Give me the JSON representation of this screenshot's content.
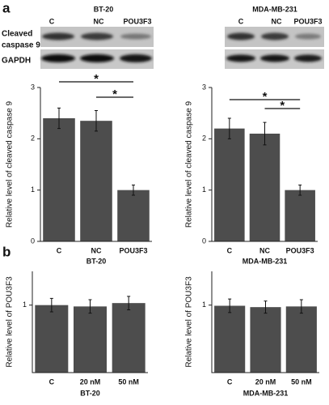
{
  "panel_labels": [
    "a",
    "b"
  ],
  "blots": [
    {
      "title": "BT-20",
      "lanes": [
        "C",
        "NC",
        "POU3F3"
      ],
      "rows": [
        [
          "Cleaved",
          "caspase 9"
        ],
        [
          "GAPDH"
        ]
      ]
    },
    {
      "title": "MDA-MB-231",
      "lanes": [
        "C",
        "NC",
        "POU3F3"
      ]
    }
  ],
  "chart_data": [
    {
      "type": "bar",
      "y_label": "Relative level of cleaved caspase 9",
      "x_label": "BT-20",
      "categories": [
        "C",
        "NC",
        "POU3F3"
      ],
      "values": [
        2.4,
        2.35,
        1.0
      ],
      "errors": [
        0.2,
        0.2,
        0.1
      ],
      "color": "#4d4d4d",
      "ylim": [
        0,
        3
      ],
      "yticks": [
        0,
        1,
        2,
        3
      ],
      "significance": [
        {
          "label": "*",
          "between": [
            "C",
            "POU3F3"
          ]
        },
        {
          "label": "*",
          "between": [
            "NC",
            "POU3F3"
          ]
        }
      ]
    },
    {
      "type": "bar",
      "y_label": "Relative level of cleaved caspase 9",
      "x_label": "MDA-MB-231",
      "categories": [
        "C",
        "NC",
        "POU3F3"
      ],
      "values": [
        2.2,
        2.1,
        1.0
      ],
      "errors": [
        0.2,
        0.22,
        0.1
      ],
      "color": "#4d4d4d",
      "ylim": [
        0,
        3
      ],
      "yticks": [
        0,
        1,
        2,
        3
      ],
      "significance": [
        {
          "label": "*",
          "between": [
            "C",
            "POU3F3"
          ]
        },
        {
          "label": "*",
          "between": [
            "NC",
            "POU3F3"
          ]
        }
      ]
    },
    {
      "type": "bar",
      "y_label": "Relative level of POU3F3",
      "x_label": "BT-20",
      "categories": [
        "C",
        "20 nM",
        "50 nM"
      ],
      "values": [
        1.0,
        0.98,
        1.03
      ],
      "errors": [
        0.1,
        0.1,
        0.1
      ],
      "color": "#4d4d4d",
      "ylim": [
        0,
        1.5
      ],
      "yticks": [
        1
      ]
    },
    {
      "type": "bar",
      "y_label": "Relative level of POU3F3",
      "x_label": "MDA-MB-231",
      "categories": [
        "C",
        "20 nM",
        "50 nM"
      ],
      "values": [
        0.99,
        0.97,
        0.98
      ],
      "errors": [
        0.1,
        0.09,
        0.1
      ],
      "color": "#4d4d4d",
      "ylim": [
        0,
        1.5
      ],
      "yticks": [
        1
      ]
    }
  ]
}
